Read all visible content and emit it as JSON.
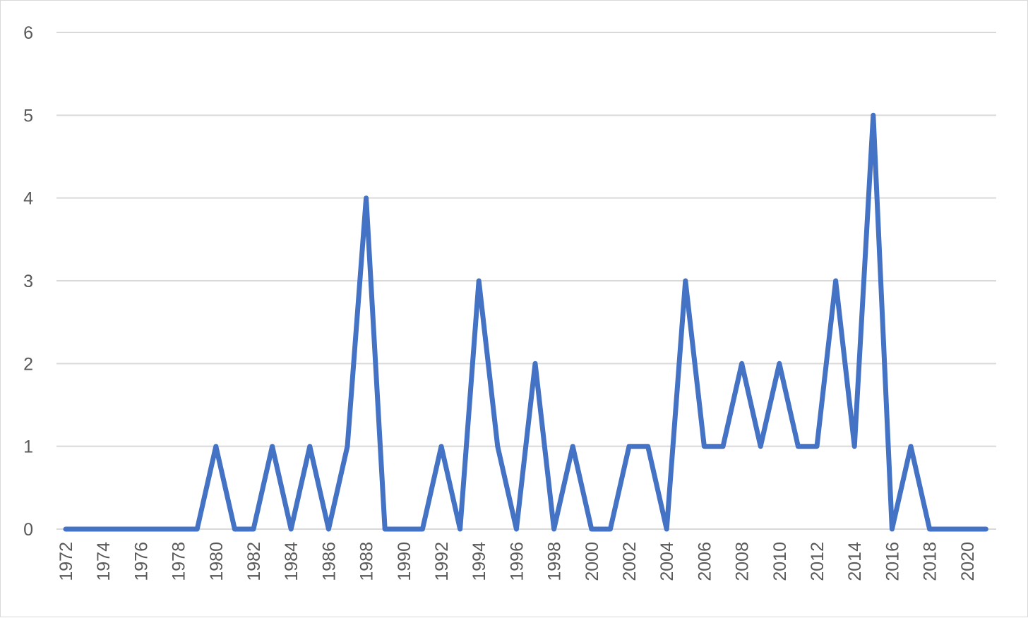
{
  "chart_data": {
    "type": "line",
    "title": "",
    "xlabel": "",
    "ylabel": "",
    "x": [
      1972,
      1973,
      1974,
      1975,
      1976,
      1977,
      1978,
      1979,
      1980,
      1981,
      1982,
      1983,
      1984,
      1985,
      1986,
      1987,
      1988,
      1989,
      1990,
      1991,
      1992,
      1993,
      1994,
      1995,
      1996,
      1997,
      1998,
      1999,
      2000,
      2001,
      2002,
      2003,
      2004,
      2005,
      2006,
      2007,
      2008,
      2009,
      2010,
      2011,
      2012,
      2013,
      2014,
      2015,
      2016,
      2017,
      2018,
      2019,
      2020,
      2021
    ],
    "x_tick_labels": [
      "1972",
      "1974",
      "1976",
      "1978",
      "1980",
      "1982",
      "1984",
      "1986",
      "1988",
      "1990",
      "1992",
      "1994",
      "1996",
      "1998",
      "2000",
      "2002",
      "2004",
      "2006",
      "2008",
      "2010",
      "2012",
      "2014",
      "2016",
      "2018",
      "2020"
    ],
    "series": [
      {
        "values": [
          0,
          0,
          0,
          0,
          0,
          0,
          0,
          0,
          1,
          0,
          0,
          1,
          0,
          1,
          0,
          1,
          4,
          0,
          0,
          0,
          1,
          0,
          3,
          1,
          0,
          2,
          0,
          1,
          0,
          0,
          1,
          1,
          0,
          3,
          1,
          1,
          2,
          1,
          2,
          1,
          1,
          3,
          1,
          5,
          0,
          1,
          0,
          0,
          0,
          0
        ],
        "color": "#4472c4"
      }
    ],
    "ylim": [
      0,
      6
    ],
    "y_ticks": [
      0,
      1,
      2,
      3,
      4,
      5,
      6
    ],
    "grid": true,
    "legend": "none",
    "gridline_color": "#d9d9d9",
    "text_color": "#595959"
  }
}
